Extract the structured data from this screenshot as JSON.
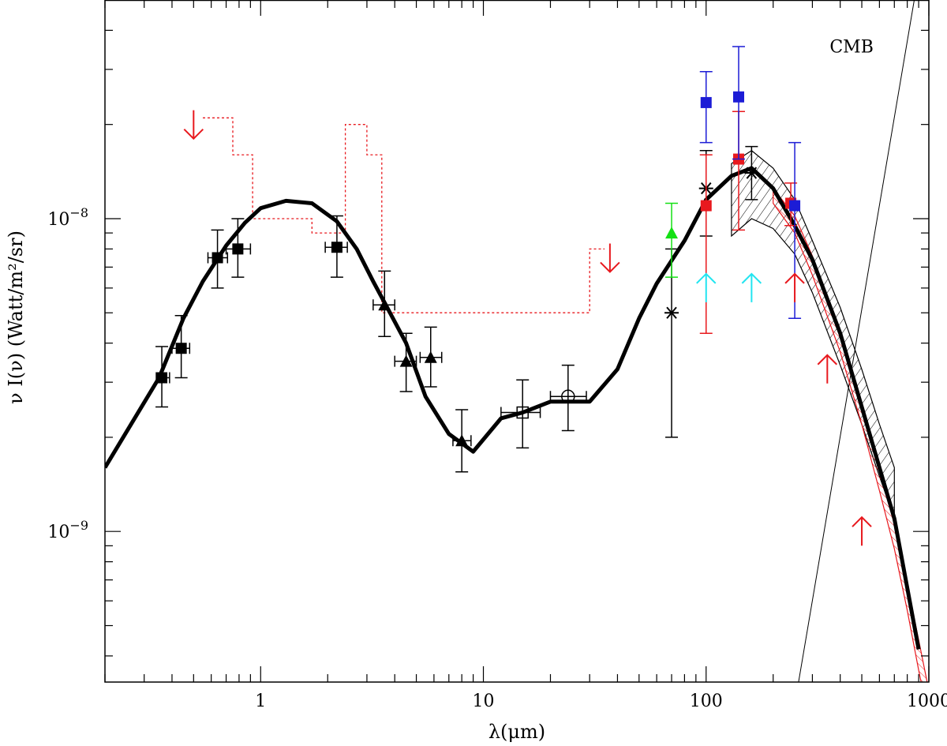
{
  "chart_data": {
    "type": "scatter",
    "title": "",
    "xlabel": "λ(μm)",
    "ylabel": "ν I(ν) (Watt/m²/sr)",
    "xscale": "log",
    "yscale": "log",
    "xlim": [
      0.2,
      1000
    ],
    "ylim": [
      3.3e-10,
      5e-08
    ],
    "x_ticks": [
      {
        "value": 1,
        "label": "1"
      },
      {
        "value": 10,
        "label": "10"
      },
      {
        "value": 100,
        "label": "100"
      },
      {
        "value": 1000,
        "label": "1000"
      }
    ],
    "y_ticks": [
      {
        "value": 1e-08,
        "base": "10",
        "exp": "−8"
      },
      {
        "value": 1e-09,
        "base": "10",
        "exp": "−9"
      }
    ],
    "annotations": [
      {
        "text": "CMB",
        "x": 450,
        "y": 3.4e-08
      }
    ],
    "colors": {
      "black": "#000000",
      "red": "#e8191e",
      "blue": "#1c1cd6",
      "green": "#14e014",
      "cyan": "#22e5f0"
    },
    "model_curve": {
      "name": "model",
      "x": [
        0.2,
        0.35,
        0.45,
        0.55,
        0.7,
        0.85,
        1.0,
        1.3,
        1.7,
        2.2,
        2.7,
        3.2,
        3.7,
        4.5,
        5.5,
        7,
        9,
        12,
        15,
        20,
        30,
        40,
        50,
        60,
        80,
        100,
        130,
        160,
        200,
        250,
        300,
        400,
        500,
        600,
        700,
        900
      ],
      "y": [
        1.6e-09,
        3.1e-09,
        4.8e-09,
        6.3e-09,
        8.2e-09,
        9.7e-09,
        1.08e-08,
        1.14e-08,
        1.12e-08,
        9.8e-09,
        8e-09,
        6.3e-09,
        5.2e-09,
        4e-09,
        2.7e-09,
        2.05e-09,
        1.8e-09,
        2.3e-09,
        2.4e-09,
        2.6e-09,
        2.6e-09,
        3.3e-09,
        4.8e-09,
        6.2e-09,
        8.5e-09,
        1.15e-08,
        1.37e-08,
        1.45e-08,
        1.25e-08,
        9.5e-09,
        7.4e-09,
        4.3e-09,
        2.5e-09,
        1.6e-09,
        1.1e-09,
        4.2e-10
      ]
    },
    "cmb_line": {
      "x": [
        260,
        860
      ],
      "y": [
        3.3e-10,
        5e-08
      ]
    },
    "upper_limit_step": {
      "x": [
        0.55,
        0.75,
        0.75,
        0.92,
        0.92,
        1.7,
        1.7,
        2.4,
        2.4,
        3.0,
        3.0,
        3.5,
        3.5,
        30,
        30,
        35
      ],
      "y": [
        2.1e-08,
        2.1e-08,
        1.6e-08,
        1.6e-08,
        1e-08,
        1e-08,
        9e-09,
        9e-09,
        2e-08,
        2e-08,
        1.6e-08,
        1.6e-08,
        5e-09,
        5e-09,
        8e-09,
        8e-09
      ]
    },
    "series": [
      {
        "name": "black filled squares",
        "color": "black",
        "marker": "square",
        "points": [
          {
            "x": 0.36,
            "y": 3.1e-09,
            "ylo": 2.5e-09,
            "yhi": 3.9e-09,
            "xlo": 0.34,
            "xhi": 0.39
          },
          {
            "x": 0.44,
            "y": 3.85e-09,
            "ylo": 3.1e-09,
            "yhi": 4.9e-09,
            "xlo": 0.4,
            "xhi": 0.48
          },
          {
            "x": 0.64,
            "y": 7.5e-09,
            "ylo": 6e-09,
            "yhi": 9.2e-09,
            "xlo": 0.58,
            "xhi": 0.71
          },
          {
            "x": 0.79,
            "y": 8e-09,
            "ylo": 6.5e-09,
            "yhi": 1e-08,
            "xlo": 0.7,
            "xhi": 0.9
          },
          {
            "x": 2.2,
            "y": 8.1e-09,
            "ylo": 6.5e-09,
            "yhi": 1.02e-08,
            "xlo": 1.95,
            "xhi": 2.45
          }
        ]
      },
      {
        "name": "black triangles",
        "color": "black",
        "marker": "triangle",
        "points": [
          {
            "x": 3.6,
            "y": 5.3e-09,
            "ylo": 4.2e-09,
            "yhi": 6.8e-09,
            "xlo": 3.2,
            "xhi": 4.0
          },
          {
            "x": 4.5,
            "y": 3.5e-09,
            "ylo": 2.8e-09,
            "yhi": 4.3e-09,
            "xlo": 4.0,
            "xhi": 5.0
          },
          {
            "x": 5.8,
            "y": 3.6e-09,
            "ylo": 2.9e-09,
            "yhi": 4.5e-09,
            "xlo": 5.2,
            "xhi": 6.5
          },
          {
            "x": 8.0,
            "y": 1.95e-09,
            "ylo": 1.55e-09,
            "yhi": 2.45e-09,
            "xlo": 7.3,
            "xhi": 8.8
          }
        ]
      },
      {
        "name": "open square",
        "color": "black",
        "marker": "open-square",
        "points": [
          {
            "x": 15,
            "y": 2.4e-09,
            "ylo": 1.85e-09,
            "yhi": 3.05e-09,
            "xlo": 12,
            "xhi": 18
          }
        ]
      },
      {
        "name": "open circle",
        "color": "black",
        "marker": "open-circle",
        "points": [
          {
            "x": 24,
            "y": 2.7e-09,
            "ylo": 2.1e-09,
            "yhi": 3.4e-09,
            "xlo": 20,
            "xhi": 29
          }
        ]
      },
      {
        "name": "black stars",
        "color": "black",
        "marker": "star",
        "points": [
          {
            "x": 70,
            "y": 5e-09,
            "ylo": 2e-09,
            "yhi": 8e-09
          },
          {
            "x": 100,
            "y": 1.25e-08,
            "ylo": 8.8e-09,
            "yhi": 1.65e-08
          },
          {
            "x": 160,
            "y": 1.4e-08,
            "ylo": 1.15e-08,
            "yhi": 1.7e-08
          }
        ]
      },
      {
        "name": "green triangle",
        "color": "green",
        "marker": "triangle",
        "points": [
          {
            "x": 70,
            "y": 9e-09,
            "ylo": 6.5e-09,
            "yhi": 1.12e-08
          }
        ]
      },
      {
        "name": "red squares",
        "color": "red",
        "marker": "square",
        "points": [
          {
            "x": 100,
            "y": 1.1e-08,
            "ylo": 4.3e-09,
            "yhi": 1.6e-08
          },
          {
            "x": 140,
            "y": 1.55e-08,
            "ylo": 9.2e-09,
            "yhi": 2.2e-08
          },
          {
            "x": 240,
            "y": 1.12e-08,
            "ylo": 9.5e-09,
            "yhi": 1.3e-08
          }
        ]
      },
      {
        "name": "blue squares",
        "color": "blue",
        "marker": "square",
        "points": [
          {
            "x": 100,
            "y": 2.35e-08,
            "ylo": 1.75e-08,
            "yhi": 2.95e-08
          },
          {
            "x": 140,
            "y": 2.45e-08,
            "ylo": 1.55e-08,
            "yhi": 3.55e-08
          },
          {
            "x": 250,
            "y": 1.1e-08,
            "ylo": 4.8e-09,
            "yhi": 1.75e-08
          }
        ]
      }
    ],
    "upper_limit_arrows": [
      {
        "x": 0.5,
        "y": 2e-08,
        "color": "red"
      },
      {
        "x": 37,
        "y": 7.5e-09,
        "color": "red"
      }
    ],
    "lower_limit_arrows": [
      {
        "x": 100,
        "y": 6e-09,
        "color": "cyan"
      },
      {
        "x": 160,
        "y": 6e-09,
        "color": "cyan"
      },
      {
        "x": 250,
        "y": 6e-09,
        "color": "red"
      },
      {
        "x": 350,
        "y": 3.3e-09,
        "color": "red"
      },
      {
        "x": 500,
        "y": 1e-09,
        "color": "red"
      }
    ],
    "bands": [
      {
        "name": "black hatched band",
        "color": "black",
        "x": [
          130,
          160,
          200,
          250,
          300,
          400,
          500,
          600,
          700
        ],
        "upper": [
          1.5e-08,
          1.65e-08,
          1.45e-08,
          1.15e-08,
          8.5e-09,
          5.2e-09,
          3.3e-09,
          2.2e-09,
          1.6e-09
        ],
        "lower": [
          8.8e-09,
          1e-08,
          9.3e-09,
          7.7e-09,
          5.8e-09,
          3.4e-09,
          2.2e-09,
          1.5e-09,
          1.1e-09
        ]
      },
      {
        "name": "red hatched band",
        "color": "red",
        "x": [
          200,
          250,
          300,
          400,
          500,
          600,
          700,
          800,
          900,
          1000
        ],
        "upper": [
          1.25e-08,
          1.02e-08,
          7.6e-09,
          4.3e-09,
          2.55e-09,
          1.6e-09,
          1.05e-09,
          6.8e-10,
          4.5e-10,
          3.1e-10
        ],
        "lower": [
          1.12e-08,
          9e-09,
          6.6e-09,
          3.75e-09,
          2.2e-09,
          1.35e-09,
          8.8e-10,
          5.6e-10,
          3.6e-10,
          2.5e-10
        ]
      }
    ]
  }
}
